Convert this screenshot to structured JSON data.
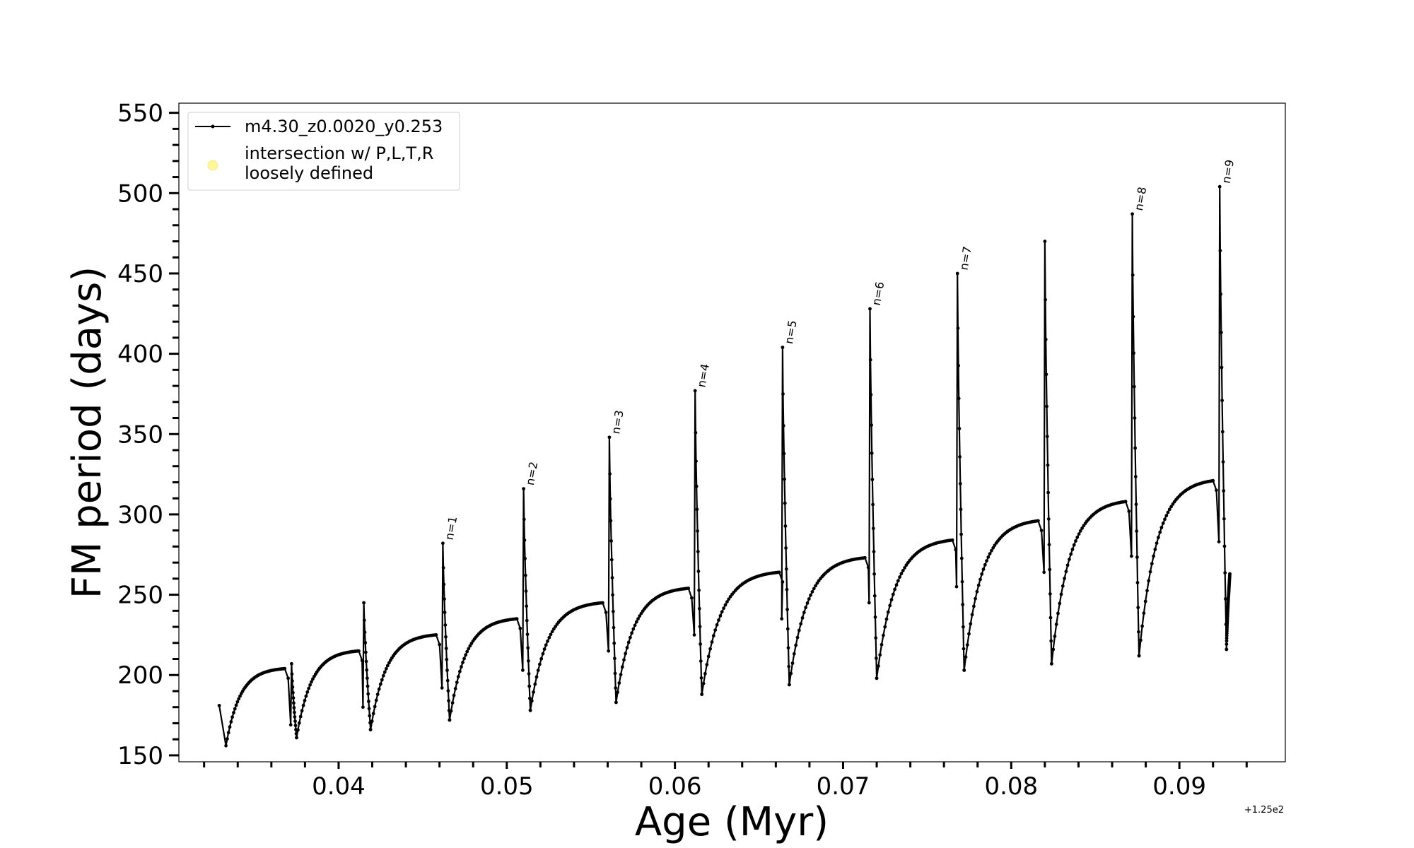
{
  "chart_data": {
    "type": "line",
    "xlabel": "Age (Myr)",
    "ylabel": "FM period (days)",
    "x_offset_label": "+1.25e2",
    "xlim": [
      0.0305,
      0.0963
    ],
    "ylim": [
      146,
      556
    ],
    "grid": false,
    "legend_placement": "top-left",
    "x_major_ticks": [
      0.04,
      0.05,
      0.06,
      0.07,
      0.08,
      0.09
    ],
    "x_minor_ticks": [
      0.032,
      0.034,
      0.036,
      0.038,
      0.042,
      0.044,
      0.046,
      0.048,
      0.052,
      0.054,
      0.056,
      0.058,
      0.062,
      0.064,
      0.066,
      0.068,
      0.072,
      0.074,
      0.076,
      0.078,
      0.082,
      0.084,
      0.086,
      0.088,
      0.092,
      0.094
    ],
    "y_major_ticks": [
      150,
      200,
      250,
      300,
      350,
      400,
      450,
      500,
      550
    ],
    "y_minor_step": 10,
    "x_tick_labels": [
      "0.04",
      "0.05",
      "0.06",
      "0.07",
      "0.08",
      "0.09"
    ],
    "y_tick_labels": [
      "150",
      "200",
      "250",
      "300",
      "350",
      "400",
      "450",
      "500",
      "550"
    ],
    "series": [
      {
        "name": "m4.30_z0.0020_y0.253",
        "color": "#000000",
        "marker": "dot",
        "cycles": [
          {
            "drop": 0.0329,
            "min_t": 0.0333,
            "min_p": 156,
            "plateau_end": 0.0368,
            "plateau_p": 204,
            "peak": 181,
            "drop_p": 167,
            "end_p": 181
          },
          {
            "drop": 0.0372,
            "min_t": 0.0375,
            "min_p": 161,
            "plateau_end": 0.0412,
            "plateau_p": 215,
            "peak": 207,
            "drop_p": 169
          },
          {
            "drop": 0.0415,
            "min_t": 0.0419,
            "min_p": 166,
            "plateau_end": 0.0458,
            "plateau_p": 225,
            "peak": 245,
            "drop_p": 180
          },
          {
            "drop": 0.0462,
            "min_t": 0.0466,
            "min_p": 172,
            "plateau_end": 0.0506,
            "plateau_p": 235,
            "peak": 282,
            "drop_p": 192
          },
          {
            "drop": 0.051,
            "min_t": 0.0514,
            "min_p": 178,
            "plateau_end": 0.0557,
            "plateau_p": 245,
            "peak": 316,
            "drop_p": 203
          },
          {
            "drop": 0.0561,
            "min_t": 0.0565,
            "min_p": 183,
            "plateau_end": 0.0608,
            "plateau_p": 254,
            "peak": 348,
            "drop_p": 215
          },
          {
            "drop": 0.0612,
            "min_t": 0.0616,
            "min_p": 188,
            "plateau_end": 0.0662,
            "plateau_p": 264,
            "peak": 377,
            "drop_p": 225
          },
          {
            "drop": 0.0664,
            "min_t": 0.0668,
            "min_p": 194,
            "plateau_end": 0.0713,
            "plateau_p": 273,
            "peak": 404,
            "drop_p": 235
          },
          {
            "drop": 0.0716,
            "min_t": 0.072,
            "min_p": 198,
            "plateau_end": 0.0765,
            "plateau_p": 284,
            "peak": 428,
            "drop_p": 245
          },
          {
            "drop": 0.0768,
            "min_t": 0.0772,
            "min_p": 203,
            "plateau_end": 0.0816,
            "plateau_p": 296,
            "peak": 450,
            "drop_p": 255
          },
          {
            "drop": 0.082,
            "min_t": 0.0824,
            "min_p": 207,
            "plateau_end": 0.0868,
            "plateau_p": 308,
            "peak": 470,
            "drop_p": 264
          },
          {
            "drop": 0.0872,
            "min_t": 0.0876,
            "min_p": 212,
            "plateau_end": 0.092,
            "plateau_p": 321,
            "peak": 487,
            "drop_p": 274
          },
          {
            "drop": 0.0924,
            "min_t": 0.0928,
            "min_p": 216,
            "plateau_end": 0.093,
            "plateau_p": 263,
            "peak": 504,
            "drop_p": 283
          }
        ]
      }
    ],
    "annotations": [
      {
        "text": "n=1",
        "x": 0.0462,
        "y": 282
      },
      {
        "text": "n=2",
        "x": 0.051,
        "y": 316
      },
      {
        "text": "n=3",
        "x": 0.0561,
        "y": 348
      },
      {
        "text": "n=4",
        "x": 0.0612,
        "y": 377
      },
      {
        "text": "n=5",
        "x": 0.0664,
        "y": 404
      },
      {
        "text": "n=6",
        "x": 0.0716,
        "y": 428
      },
      {
        "text": "n=7",
        "x": 0.0768,
        "y": 450
      },
      {
        "text": "n=8",
        "x": 0.0872,
        "y": 487
      },
      {
        "text": "n=9",
        "x": 0.0924,
        "y": 504
      }
    ],
    "legend": [
      {
        "label": "m4.30_z0.0020_y0.253",
        "style": "line-dot",
        "color": "#000000"
      },
      {
        "label_lines": [
          "intersection w/ P,L,T,R",
          "loosely defined"
        ],
        "style": "circle",
        "color": "#fff59a"
      }
    ]
  }
}
